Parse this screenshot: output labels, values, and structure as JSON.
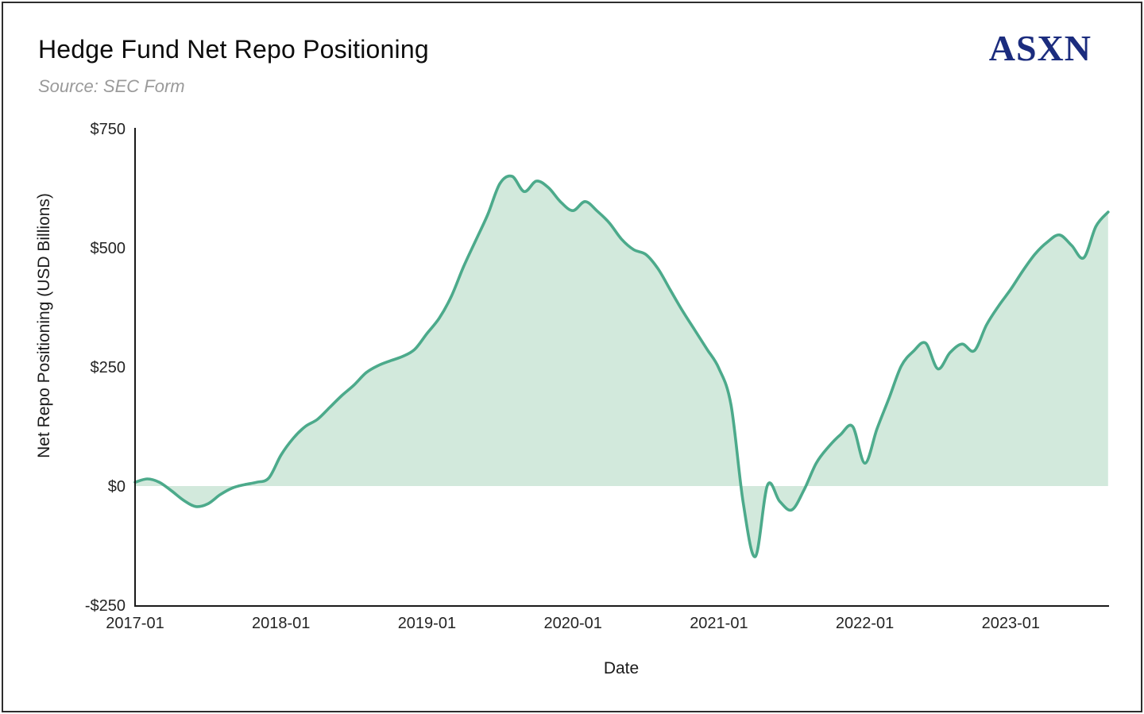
{
  "header": {
    "title": "Hedge Fund Net Repo Positioning",
    "source": "Source: SEC Form",
    "logo": "ASXN"
  },
  "colors": {
    "line": "#4caa8b",
    "fill": "#d2e9dc",
    "axis": "#1a1a1a",
    "logo": "#1b2c7e"
  },
  "chart_data": {
    "type": "area",
    "title": "Hedge Fund Net Repo Positioning",
    "subtitle": "Source: SEC Form",
    "xlabel": "Date",
    "ylabel": "Net Repo Positioning (USD Billions)",
    "ylim": [
      -250,
      750
    ],
    "grid": false,
    "legend": "none",
    "fill_to_zero": true,
    "x_tick_labels": [
      "2017-01",
      "2018-01",
      "2019-01",
      "2020-01",
      "2021-01",
      "2022-01",
      "2023-01"
    ],
    "y_ticks": [
      {
        "value": -250,
        "label": "-$250"
      },
      {
        "value": 0,
        "label": "$0"
      },
      {
        "value": 250,
        "label": "$250"
      },
      {
        "value": 500,
        "label": "$500"
      },
      {
        "value": 750,
        "label": "$750"
      }
    ],
    "x_ticks": [
      {
        "month_index": 0,
        "label": "2017-01"
      },
      {
        "month_index": 12,
        "label": "2018-01"
      },
      {
        "month_index": 24,
        "label": "2019-01"
      },
      {
        "month_index": 36,
        "label": "2020-01"
      },
      {
        "month_index": 48,
        "label": "2021-01"
      },
      {
        "month_index": 60,
        "label": "2022-01"
      },
      {
        "month_index": 72,
        "label": "2023-01"
      }
    ],
    "series": [
      {
        "name": "Hedge Fund Net Repo Positioning (USD Billions)",
        "x_start": "2017-01",
        "x_interval": "monthly",
        "values": [
          8,
          15,
          8,
          -10,
          -30,
          -43,
          -37,
          -18,
          -4,
          3,
          8,
          17,
          65,
          100,
          125,
          140,
          165,
          190,
          212,
          238,
          253,
          263,
          272,
          287,
          320,
          352,
          398,
          460,
          515,
          570,
          635,
          650,
          618,
          640,
          626,
          596,
          578,
          597,
          577,
          552,
          518,
          496,
          486,
          456,
          412,
          368,
          328,
          288,
          247,
          170,
          -35,
          -148,
          2,
          -32,
          -50,
          -8,
          48,
          82,
          108,
          125,
          48,
          120,
          185,
          252,
          283,
          300,
          246,
          280,
          298,
          284,
          338,
          378,
          413,
          452,
          487,
          512,
          527,
          505,
          479,
          545,
          575
        ]
      }
    ]
  }
}
